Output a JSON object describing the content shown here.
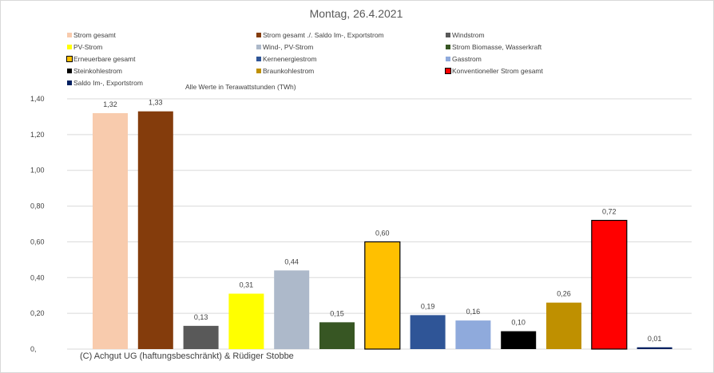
{
  "chart_data": {
    "type": "bar",
    "title": "Montag, 26.4.2021",
    "subtitle": "Alle Werte in Terawattstunden (TWh)",
    "footer": "(C) Achgut UG (haftungsbeschränkt) & Rüdiger Stobbe",
    "ylim": [
      0,
      1.4
    ],
    "yticks": [
      "1,40",
      "1,20",
      "1,00",
      "0,80",
      "0,60",
      "0,40",
      "0,20",
      "0,"
    ],
    "ytick_values": [
      1.4,
      1.2,
      1.0,
      0.8,
      0.6,
      0.4,
      0.2,
      0
    ],
    "grid": true,
    "legend_position": "top",
    "categories": [
      "Strom gesamt",
      "Strom gesamt ./. Saldo Im-, Exportstrom",
      "Windstrom",
      "PV-Strom",
      "Wind-, PV-Strom",
      "Strom Biomasse, Wasserkraft",
      "Erneuerbare gesamt",
      "Kernenergiestrom",
      "Gasstrom",
      "Steinkohlestrom",
      "Braunkohlestrom",
      "Konventioneller Strom gesamt",
      "Saldo Im-, Exportstrom"
    ],
    "values": [
      1.32,
      1.33,
      0.13,
      0.31,
      0.44,
      0.15,
      0.6,
      0.19,
      0.16,
      0.1,
      0.26,
      0.72,
      0.01
    ],
    "value_labels": [
      "1,32",
      "1,33",
      "0,13",
      "0,31",
      "0,44",
      "0,15",
      "0,60",
      "0,19",
      "0,16",
      "0,10",
      "0,26",
      "0,72",
      "0,01"
    ],
    "colors": [
      "#f8cbad",
      "#843c0c",
      "#595959",
      "#ffff00",
      "#adb9ca",
      "#375623",
      "#ffc000",
      "#2f5597",
      "#8faadc",
      "#000000",
      "#bf9000",
      "#ff0000",
      "#002060"
    ],
    "outlined": [
      false,
      false,
      false,
      false,
      false,
      false,
      true,
      false,
      false,
      false,
      false,
      true,
      false
    ]
  }
}
